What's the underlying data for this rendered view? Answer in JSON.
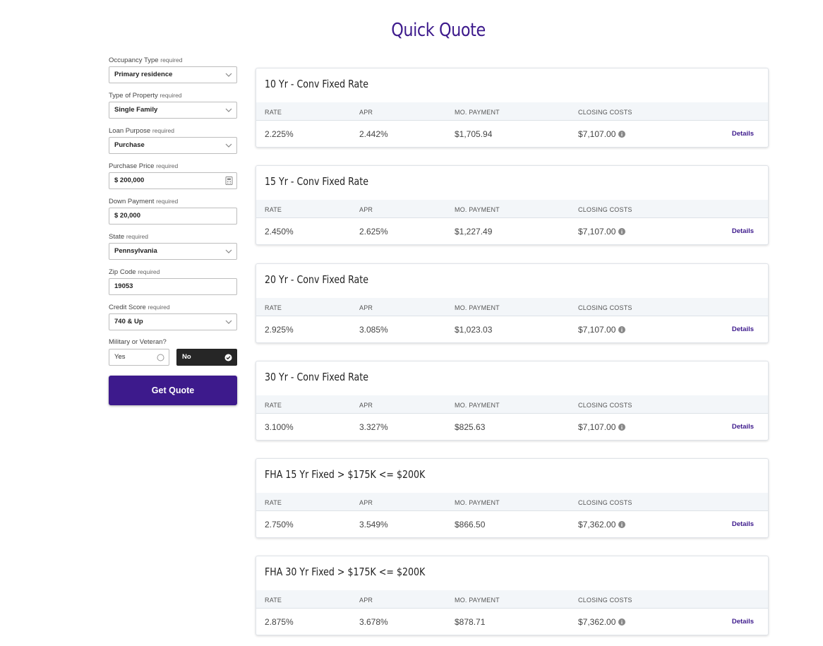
{
  "title": "Quick Quote",
  "required_text": "required",
  "form": {
    "occupancy": {
      "label": "Occupancy Type",
      "value": "Primary residence"
    },
    "property": {
      "label": "Type of Property",
      "value": "Single Family"
    },
    "purpose": {
      "label": "Loan Purpose",
      "value": "Purchase"
    },
    "price": {
      "label": "Purchase Price",
      "value": "$ 200,000"
    },
    "down": {
      "label": "Down Payment",
      "value": "$ 20,000"
    },
    "state": {
      "label": "State",
      "value": "Pennsylvania"
    },
    "zip": {
      "label": "Zip Code",
      "value": "19053"
    },
    "credit": {
      "label": "Credit Score",
      "value": "740 & Up"
    },
    "military": {
      "label": "Military or Veteran?",
      "yes": "Yes",
      "no": "No",
      "selected": "No"
    },
    "submit_label": "Get Quote"
  },
  "columns": {
    "rate": "RATE",
    "apr": "APR",
    "payment": "MO. PAYMENT",
    "closing": "CLOSING COSTS"
  },
  "details_label": "Details",
  "quotes": [
    {
      "title": "10 Yr - Conv Fixed Rate",
      "rate": "2.225%",
      "apr": "2.442%",
      "payment": "$1,705.94",
      "closing": "$7,107.00"
    },
    {
      "title": "15 Yr - Conv Fixed Rate",
      "rate": "2.450%",
      "apr": "2.625%",
      "payment": "$1,227.49",
      "closing": "$7,107.00"
    },
    {
      "title": "20 Yr - Conv Fixed Rate",
      "rate": "2.925%",
      "apr": "3.085%",
      "payment": "$1,023.03",
      "closing": "$7,107.00"
    },
    {
      "title": "30 Yr - Conv Fixed Rate",
      "rate": "3.100%",
      "apr": "3.327%",
      "payment": "$825.63",
      "closing": "$7,107.00"
    },
    {
      "title": "FHA 15 Yr Fixed > $175K <= $200K",
      "rate": "2.750%",
      "apr": "3.549%",
      "payment": "$866.50",
      "closing": "$7,362.00"
    },
    {
      "title": "FHA 30 Yr Fixed > $175K <= $200K",
      "rate": "2.875%",
      "apr": "3.678%",
      "payment": "$878.71",
      "closing": "$7,362.00"
    }
  ],
  "colors": {
    "brand": "#3d1a8c",
    "selected_toggle": "#262626",
    "table_header": "#f3f6f9"
  }
}
